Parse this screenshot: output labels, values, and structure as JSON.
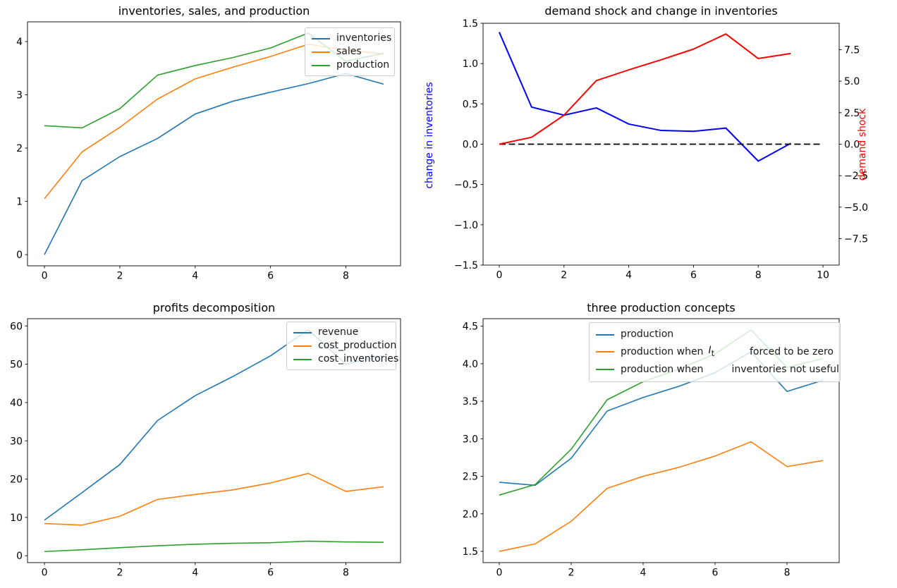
{
  "figure": {
    "background": "#ffffff"
  },
  "chart_data": [
    {
      "type": "line",
      "title": "inventories, sales, and production",
      "x": [
        0,
        1,
        2,
        3,
        4,
        5,
        6,
        7,
        8,
        9
      ],
      "xlim": [
        -0.45,
        9.45
      ],
      "xticks": [
        0,
        2,
        4,
        6,
        8
      ],
      "xticklabels": [
        "0",
        "2",
        "4",
        "6",
        "8"
      ],
      "ylim": [
        -0.21,
        4.37
      ],
      "yticks": [
        0,
        1,
        2,
        3,
        4
      ],
      "yticklabels": [
        "0",
        "1",
        "2",
        "3",
        "4"
      ],
      "grid": false,
      "legend_position": "upper right",
      "series": [
        {
          "name": "inventories",
          "color": "#1f77b4",
          "values": [
            0.0,
            1.39,
            1.84,
            2.18,
            2.64,
            2.88,
            3.05,
            3.21,
            3.4,
            3.2
          ]
        },
        {
          "name": "sales",
          "color": "#ff7f0e",
          "values": [
            1.05,
            1.93,
            2.39,
            2.92,
            3.3,
            3.52,
            3.72,
            3.95,
            3.84,
            3.77
          ]
        },
        {
          "name": "production",
          "color": "#2ca02c",
          "values": [
            2.42,
            2.38,
            2.74,
            3.37,
            3.55,
            3.7,
            3.88,
            4.16,
            3.63,
            3.78
          ]
        }
      ]
    },
    {
      "type": "line",
      "title": "demand shock and change in inventories",
      "x": [
        0,
        1,
        2,
        3,
        4,
        5,
        6,
        7,
        8,
        9
      ],
      "xlim": [
        -0.5,
        10.5
      ],
      "xticks": [
        0,
        2,
        4,
        6,
        8,
        10
      ],
      "xticklabels": [
        "0",
        "2",
        "4",
        "6",
        "8",
        "10"
      ],
      "ylim": [
        -1.5,
        1.5
      ],
      "yticks": [
        -1.5,
        -1.0,
        -0.5,
        0.0,
        0.5,
        1.0,
        1.5
      ],
      "yticklabels": [
        "−1.5",
        "−1.0",
        "−0.5",
        "0.0",
        "0.5",
        "1.0",
        "1.5"
      ],
      "ylabel": {
        "text": "change in inventories",
        "color": "#0000ff"
      },
      "right_axis": {
        "label": "demand shock",
        "color": "#ff0000",
        "ylim": [
          -9.6,
          9.6
        ],
        "yticks": [
          -7.5,
          -5.0,
          -2.5,
          0.0,
          2.5,
          5.0,
          7.5
        ],
        "yticklabels": [
          "−7.5",
          "−5.0",
          "−2.5",
          "0.0",
          "2.5",
          "5.0",
          "7.5"
        ]
      },
      "grid": false,
      "legend_position": "none",
      "series": [
        {
          "name": "change in inventories",
          "color": "#0000ff",
          "axis": "left",
          "values": [
            1.39,
            0.46,
            0.36,
            0.45,
            0.25,
            0.17,
            0.16,
            0.2,
            -0.21,
            0.01
          ]
        },
        {
          "name": "demand shock",
          "color": "#ff0000",
          "axis": "right",
          "values": [
            0.0,
            0.55,
            2.3,
            5.05,
            5.9,
            6.7,
            7.55,
            8.75,
            6.8,
            7.2
          ]
        }
      ],
      "extra_lines": [
        {
          "name": "zero-reference-line",
          "color": "#000000",
          "style": "dashed",
          "x": [
            0,
            10
          ],
          "y": [
            0,
            0
          ]
        }
      ]
    },
    {
      "type": "line",
      "title": "profits decomposition",
      "x": [
        0,
        1,
        2,
        3,
        4,
        5,
        6,
        7,
        8,
        9
      ],
      "xlim": [
        -0.45,
        9.45
      ],
      "xticks": [
        0,
        2,
        4,
        6,
        8
      ],
      "xticklabels": [
        "0",
        "2",
        "4",
        "6",
        "8"
      ],
      "ylim": [
        -1.8,
        61.9
      ],
      "yticks": [
        0,
        10,
        20,
        30,
        40,
        50,
        60
      ],
      "yticklabels": [
        "0",
        "10",
        "20",
        "30",
        "40",
        "50",
        "60"
      ],
      "grid": false,
      "legend_position": "upper right",
      "series": [
        {
          "name": "revenue",
          "color": "#1f77b4",
          "values": [
            9.3,
            16.5,
            23.8,
            35.3,
            41.8,
            46.8,
            52.2,
            59.0,
            50.0,
            52.3
          ]
        },
        {
          "name": "cost_production",
          "color": "#ff7f0e",
          "values": [
            8.4,
            8.0,
            10.3,
            14.7,
            16.0,
            17.2,
            19.0,
            21.5,
            16.8,
            18.0
          ]
        },
        {
          "name": "cost_inventories",
          "color": "#2ca02c",
          "values": [
            1.1,
            1.55,
            2.1,
            2.6,
            3.0,
            3.25,
            3.4,
            3.8,
            3.6,
            3.5
          ]
        }
      ]
    },
    {
      "type": "line",
      "title": "three production concepts",
      "x": [
        0,
        1,
        2,
        3,
        4,
        5,
        6,
        7,
        8,
        9
      ],
      "xlim": [
        -0.45,
        9.45
      ],
      "xticks": [
        0,
        2,
        4,
        6,
        8
      ],
      "xticklabels": [
        "0",
        "2",
        "4",
        "6",
        "8"
      ],
      "ylim": [
        1.35,
        4.6
      ],
      "yticks": [
        1.5,
        2.0,
        2.5,
        3.0,
        3.5,
        4.0,
        4.5
      ],
      "yticklabels": [
        "1.5",
        "2.0",
        "2.5",
        "3.0",
        "3.5",
        "4.0",
        "4.5"
      ],
      "grid": false,
      "legend_position": "upper right wide",
      "series": [
        {
          "name": "production",
          "color": "#1f77b4",
          "values": [
            2.42,
            2.38,
            2.74,
            3.37,
            3.55,
            3.7,
            3.88,
            4.16,
            3.63,
            3.78
          ],
          "legend": {
            "pre": "production"
          }
        },
        {
          "name": "production when I_t forced to be zero",
          "color": "#ff7f0e",
          "values": [
            1.5,
            1.6,
            1.9,
            2.34,
            2.5,
            2.62,
            2.77,
            2.96,
            2.63,
            2.71
          ],
          "legend": {
            "pre": "production when",
            "math_base": "I",
            "math_sub": "t",
            "part2": "forced to be zero"
          }
        },
        {
          "name": "production when inventories not useful",
          "color": "#2ca02c",
          "values": [
            2.25,
            2.39,
            2.86,
            3.52,
            3.76,
            3.93,
            4.13,
            4.45,
            3.95,
            4.07
          ],
          "legend": {
            "pre": "production when",
            "part2": "inventories not useful"
          }
        }
      ]
    }
  ]
}
